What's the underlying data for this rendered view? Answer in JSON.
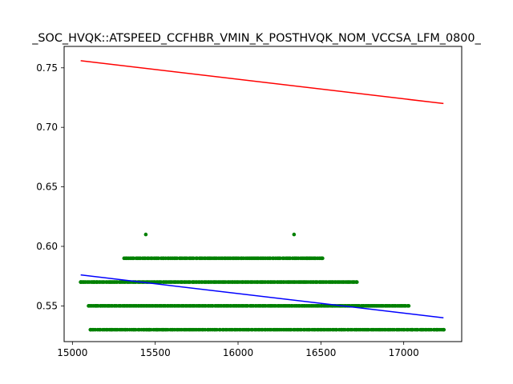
{
  "chart_data": {
    "type": "scatter",
    "title": "_SOC_HVQK::ATSPEED_CCFHBR_VMIN_K_POSTHVQK_NOM_VCCSA_LFM_0800_",
    "xlabel": "",
    "ylabel": "",
    "xlim": [
      14950,
      17350
    ],
    "ylim": [
      0.52,
      0.768
    ],
    "x_ticks": [
      15000,
      15500,
      16000,
      16500,
      17000
    ],
    "y_ticks": [
      0.55,
      0.6,
      0.65,
      0.7,
      0.75
    ],
    "y_tick_labels": [
      "0.55",
      "0.60",
      "0.65",
      "0.70",
      "0.75"
    ],
    "grid": false,
    "colors": {
      "points": "#008000",
      "upper_line": "#ff0000",
      "fit_line": "#0000ff"
    },
    "point_rows": [
      {
        "y": 0.61,
        "x": [
          15443,
          16338
        ]
      },
      {
        "y": 0.59,
        "x_range": [
          15312,
          16508
        ],
        "count": 120,
        "sparse_x": [
          16420,
          16465,
          16510
        ]
      },
      {
        "y": 0.57,
        "x_range": [
          15050,
          16720
        ],
        "count": 210,
        "sparse_x": [
          15050,
          15065,
          15130,
          15145,
          15230
        ]
      },
      {
        "y": 0.55,
        "x_range": [
          15100,
          17030
        ],
        "count": 230,
        "sparse_x": [
          15100,
          15140,
          15170,
          15220
        ]
      },
      {
        "y": 0.53,
        "x_range": [
          15110,
          17240
        ],
        "count": 210,
        "sparse_x": [
          15110,
          15235,
          15450,
          15465,
          15510,
          15550,
          17050,
          17110,
          17200,
          17240
        ]
      }
    ],
    "lines": [
      {
        "color": "red",
        "points": [
          [
            15050,
            0.756
          ],
          [
            17240,
            0.72
          ]
        ]
      },
      {
        "color": "blue",
        "points": [
          [
            15050,
            0.576
          ],
          [
            17240,
            0.54
          ]
        ]
      }
    ]
  }
}
